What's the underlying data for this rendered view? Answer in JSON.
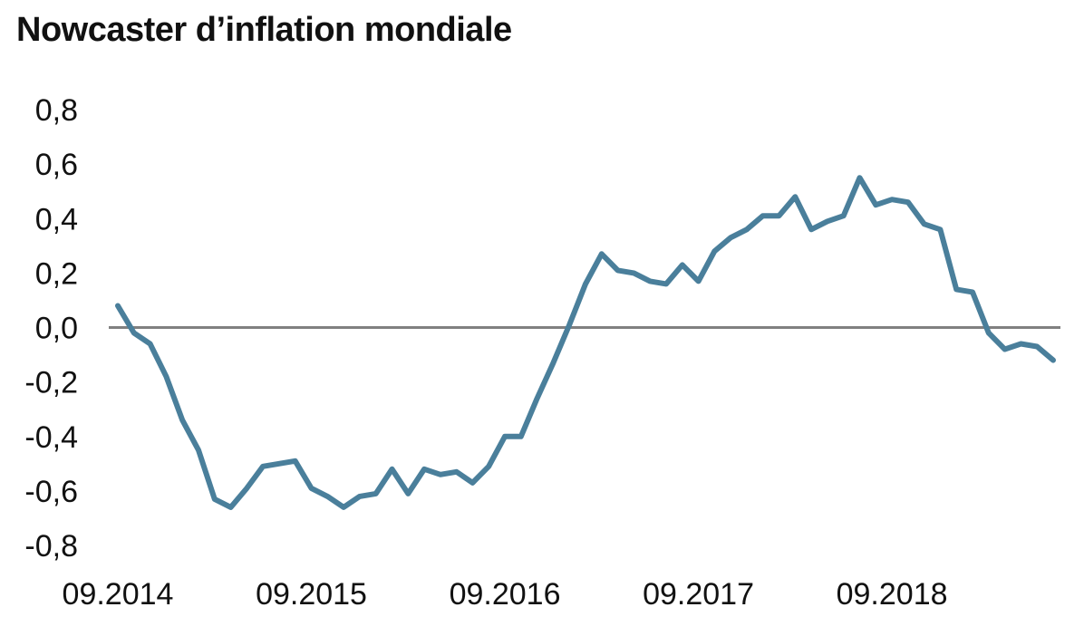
{
  "title": "Nowcaster d’inflation mondiale",
  "colors": {
    "line": "#4a7f9b",
    "zero_line": "#808080",
    "text": "#111111"
  },
  "chart_data": {
    "type": "line",
    "title": "Nowcaster d’inflation mondiale",
    "xlabel": "",
    "ylabel": "",
    "ylim": [
      -0.8,
      0.8
    ],
    "y_ticks": [
      0.8,
      0.6,
      0.4,
      0.2,
      0.0,
      -0.2,
      -0.4,
      -0.6,
      -0.8
    ],
    "y_tick_labels": [
      "0,8",
      "0,6",
      "0,4",
      "0,2",
      "0,0",
      "-0,2",
      "-0,4",
      "-0,6",
      "-0,8"
    ],
    "x_tick_labels": [
      "09.2014",
      "09.2015",
      "09.2016",
      "09.2017",
      "09.2018"
    ],
    "x_start": "2014-09",
    "x_end": "2019-05",
    "grid": false,
    "zero_line": true,
    "series": [
      {
        "values": [
          0.08,
          -0.02,
          -0.06,
          -0.18,
          -0.34,
          -0.45,
          -0.63,
          -0.66,
          -0.59,
          -0.51,
          -0.5,
          -0.49,
          -0.59,
          -0.62,
          -0.66,
          -0.62,
          -0.61,
          -0.52,
          -0.61,
          -0.52,
          -0.54,
          -0.53,
          -0.57,
          -0.51,
          -0.4,
          -0.4,
          -0.26,
          -0.13,
          0.01,
          0.16,
          0.27,
          0.21,
          0.2,
          0.17,
          0.16,
          0.23,
          0.17,
          0.28,
          0.33,
          0.36,
          0.41,
          0.41,
          0.48,
          0.36,
          0.39,
          0.41,
          0.55,
          0.45,
          0.47,
          0.46,
          0.38,
          0.36,
          0.14,
          0.13,
          -0.02,
          -0.08,
          -0.06,
          -0.07,
          -0.12
        ]
      }
    ]
  }
}
